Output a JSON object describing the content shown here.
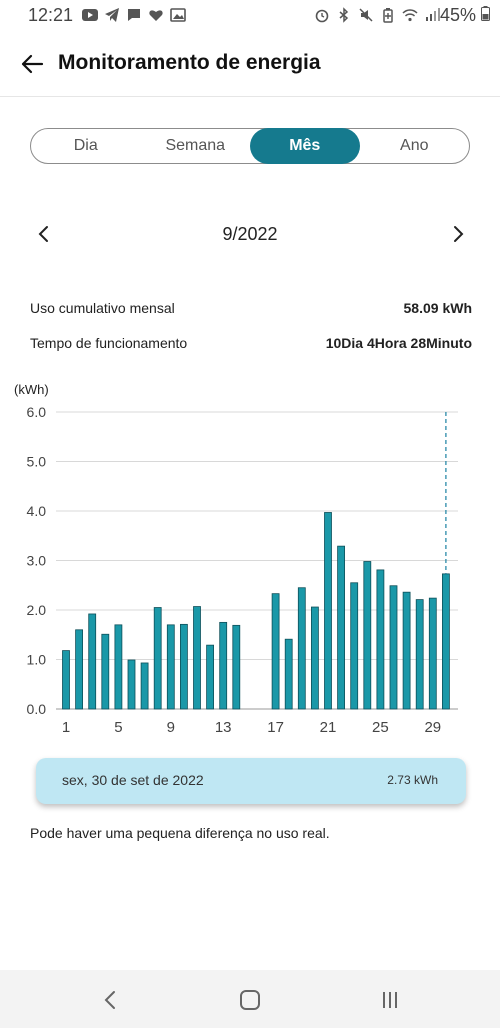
{
  "status_bar": {
    "time": "12:21",
    "battery": "45%"
  },
  "header": {
    "title": "Monitoramento de energia"
  },
  "tabs": [
    {
      "label": "Dia",
      "active": false
    },
    {
      "label": "Semana",
      "active": false
    },
    {
      "label": "Mês",
      "active": true
    },
    {
      "label": "Ano",
      "active": false
    }
  ],
  "period": {
    "label": "9/2022"
  },
  "summary": [
    {
      "label": "Uso cumulativo mensal",
      "value": "58.09 kWh"
    },
    {
      "label": "Tempo de funcionamento",
      "value": "10Dia 4Hora 28Minuto"
    }
  ],
  "chart_data": {
    "type": "bar",
    "ylabel": "(kWh)",
    "ylim": [
      0,
      6
    ],
    "yticks": [
      "0.0",
      "1.0",
      "2.0",
      "3.0",
      "4.0",
      "5.0",
      "6.0"
    ],
    "xtick_labels": [
      "1",
      "5",
      "9",
      "13",
      "17",
      "21",
      "25",
      "29"
    ],
    "categories": [
      1,
      2,
      3,
      4,
      5,
      6,
      7,
      8,
      9,
      10,
      11,
      12,
      13,
      14,
      15,
      16,
      17,
      18,
      19,
      20,
      21,
      22,
      23,
      24,
      25,
      26,
      27,
      28,
      29,
      30
    ],
    "values": [
      1.18,
      1.6,
      1.92,
      1.51,
      1.7,
      0.99,
      0.93,
      2.05,
      1.7,
      1.71,
      2.07,
      1.29,
      1.75,
      1.69,
      null,
      null,
      2.33,
      1.41,
      2.45,
      2.06,
      3.97,
      3.29,
      2.55,
      2.98,
      2.81,
      2.49,
      2.36,
      2.21,
      2.24,
      2.73
    ],
    "bar_color": "#1a98a8",
    "selected_day": 30,
    "grid": true
  },
  "tooltip": {
    "date": "sex, 30 de set de 2022",
    "value": "2.73 kWh"
  },
  "note": "Pode haver uma pequena diferença no uso real.",
  "colors": {
    "accent": "#157a8e",
    "tooltip_bg": "#bfe7f3"
  }
}
